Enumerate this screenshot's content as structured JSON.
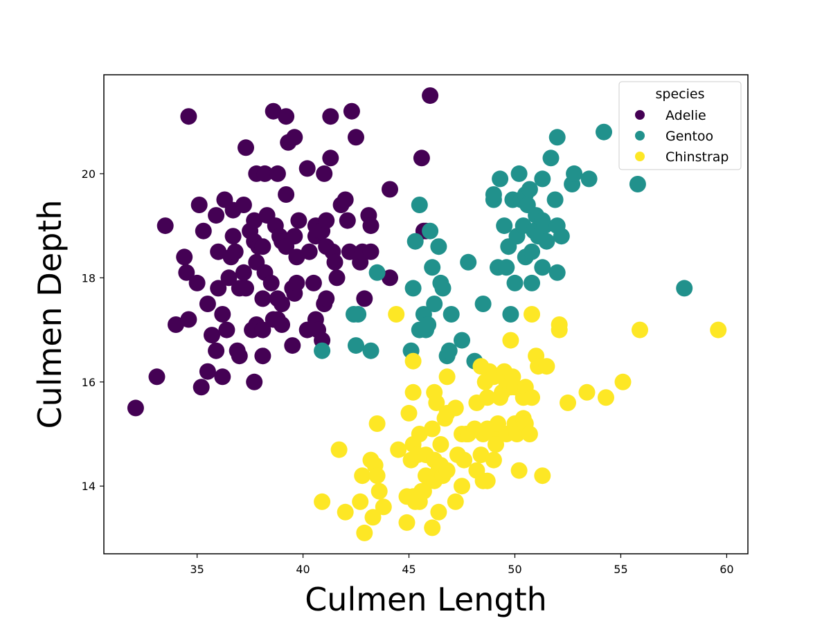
{
  "chart_data": {
    "type": "scatter",
    "title": "",
    "xlabel": "Culmen Length",
    "ylabel": "Culmen Depth",
    "xlim": [
      30.6,
      61.0
    ],
    "ylim": [
      12.7,
      21.9
    ],
    "xticks": [
      35,
      40,
      45,
      50,
      55,
      60
    ],
    "yticks": [
      14,
      16,
      18,
      20
    ],
    "grid": false,
    "legend": {
      "title": "species",
      "placement": "top-right"
    },
    "series": [
      {
        "name": "Adelie",
        "color": "#440154",
        "points": [
          [
            32.1,
            15.5
          ],
          [
            33.1,
            16.1
          ],
          [
            33.5,
            19.0
          ],
          [
            34.0,
            17.1
          ],
          [
            34.4,
            18.4
          ],
          [
            34.5,
            18.1
          ],
          [
            34.6,
            21.1
          ],
          [
            34.6,
            17.2
          ],
          [
            35.0,
            17.9
          ],
          [
            35.1,
            19.4
          ],
          [
            35.3,
            18.9
          ],
          [
            35.2,
            15.9
          ],
          [
            35.5,
            16.2
          ],
          [
            35.5,
            17.5
          ],
          [
            35.7,
            16.9
          ],
          [
            35.9,
            16.6
          ],
          [
            35.9,
            19.2
          ],
          [
            36.0,
            17.8
          ],
          [
            36.0,
            18.5
          ],
          [
            36.2,
            17.3
          ],
          [
            36.2,
            16.1
          ],
          [
            36.3,
            19.5
          ],
          [
            36.4,
            17.0
          ],
          [
            36.5,
            18.0
          ],
          [
            36.6,
            18.4
          ],
          [
            36.7,
            18.8
          ],
          [
            36.7,
            19.3
          ],
          [
            36.8,
            18.5
          ],
          [
            36.9,
            16.6
          ],
          [
            37.0,
            16.5
          ],
          [
            37.0,
            17.8
          ],
          [
            37.2,
            18.1
          ],
          [
            37.2,
            19.4
          ],
          [
            37.3,
            17.8
          ],
          [
            37.3,
            20.5
          ],
          [
            37.5,
            18.9
          ],
          [
            37.6,
            17.0
          ],
          [
            37.7,
            18.7
          ],
          [
            37.7,
            19.1
          ],
          [
            37.7,
            16.0
          ],
          [
            37.8,
            18.3
          ],
          [
            37.8,
            20.0
          ],
          [
            37.8,
            17.1
          ],
          [
            37.9,
            18.6
          ],
          [
            38.1,
            17.0
          ],
          [
            38.1,
            18.6
          ],
          [
            38.1,
            16.5
          ],
          [
            38.1,
            17.6
          ],
          [
            38.2,
            18.1
          ],
          [
            38.2,
            20.0
          ],
          [
            38.3,
            19.2
          ],
          [
            38.5,
            17.9
          ],
          [
            38.6,
            21.2
          ],
          [
            38.6,
            17.2
          ],
          [
            38.7,
            19.0
          ],
          [
            38.8,
            17.2
          ],
          [
            38.8,
            17.6
          ],
          [
            38.8,
            20.0
          ],
          [
            38.9,
            18.8
          ],
          [
            39.0,
            17.1
          ],
          [
            39.0,
            17.5
          ],
          [
            39.0,
            18.7
          ],
          [
            39.1,
            18.7
          ],
          [
            39.2,
            19.6
          ],
          [
            39.2,
            21.1
          ],
          [
            39.2,
            18.6
          ],
          [
            39.3,
            20.6
          ],
          [
            39.5,
            16.7
          ],
          [
            39.5,
            17.8
          ],
          [
            39.6,
            17.7
          ],
          [
            39.6,
            20.7
          ],
          [
            39.6,
            18.8
          ],
          [
            39.7,
            17.9
          ],
          [
            39.7,
            18.4
          ],
          [
            39.8,
            19.1
          ],
          [
            40.2,
            17.0
          ],
          [
            40.2,
            20.1
          ],
          [
            40.3,
            18.5
          ],
          [
            40.5,
            17.9
          ],
          [
            40.6,
            18.8
          ],
          [
            40.6,
            19.0
          ],
          [
            40.6,
            17.2
          ],
          [
            40.7,
            17.0
          ],
          [
            40.8,
            18.9
          ],
          [
            40.9,
            16.8
          ],
          [
            40.9,
            18.9
          ],
          [
            41.0,
            20.0
          ],
          [
            41.0,
            17.5
          ],
          [
            41.1,
            17.6
          ],
          [
            41.1,
            18.6
          ],
          [
            41.1,
            19.1
          ],
          [
            41.3,
            20.3
          ],
          [
            41.3,
            21.1
          ],
          [
            41.4,
            18.5
          ],
          [
            41.5,
            18.3
          ],
          [
            41.6,
            18.0
          ],
          [
            41.8,
            19.4
          ],
          [
            42.0,
            19.5
          ],
          [
            42.1,
            19.1
          ],
          [
            42.2,
            18.5
          ],
          [
            42.3,
            21.2
          ],
          [
            42.5,
            20.7
          ],
          [
            42.7,
            18.3
          ],
          [
            42.8,
            18.5
          ],
          [
            42.9,
            17.6
          ],
          [
            43.1,
            19.2
          ],
          [
            43.2,
            19.0
          ],
          [
            43.2,
            18.5
          ],
          [
            44.1,
            19.7
          ],
          [
            44.1,
            18.0
          ],
          [
            45.6,
            20.3
          ],
          [
            46.0,
            21.5
          ],
          [
            45.8,
            18.9
          ],
          [
            45.7,
            18.9
          ]
        ]
      },
      {
        "name": "Gentoo",
        "color": "#21918c",
        "points": [
          [
            40.9,
            16.6
          ],
          [
            42.4,
            17.3
          ],
          [
            42.5,
            16.7
          ],
          [
            42.6,
            17.3
          ],
          [
            43.2,
            16.6
          ],
          [
            43.5,
            18.1
          ],
          [
            45.1,
            16.6
          ],
          [
            45.2,
            17.8
          ],
          [
            45.3,
            18.7
          ],
          [
            45.5,
            17.0
          ],
          [
            45.5,
            19.4
          ],
          [
            45.7,
            17.3
          ],
          [
            45.8,
            17.0
          ],
          [
            45.9,
            17.1
          ],
          [
            46.0,
            18.9
          ],
          [
            46.1,
            18.2
          ],
          [
            46.2,
            17.5
          ],
          [
            46.4,
            18.6
          ],
          [
            46.5,
            17.9
          ],
          [
            46.6,
            17.8
          ],
          [
            46.8,
            16.5
          ],
          [
            46.9,
            16.6
          ],
          [
            47.0,
            17.3
          ],
          [
            47.5,
            16.8
          ],
          [
            47.8,
            18.3
          ],
          [
            48.1,
            16.4
          ],
          [
            48.5,
            17.5
          ],
          [
            49.0,
            19.5
          ],
          [
            49.0,
            19.6
          ],
          [
            49.2,
            18.2
          ],
          [
            49.3,
            19.9
          ],
          [
            49.5,
            19.0
          ],
          [
            49.6,
            18.2
          ],
          [
            49.7,
            18.6
          ],
          [
            49.8,
            17.3
          ],
          [
            49.9,
            19.5
          ],
          [
            50.0,
            17.9
          ],
          [
            50.1,
            18.8
          ],
          [
            50.2,
            20.0
          ],
          [
            50.3,
            19.5
          ],
          [
            50.4,
            19.0
          ],
          [
            50.5,
            18.4
          ],
          [
            50.5,
            19.6
          ],
          [
            50.6,
            19.4
          ],
          [
            50.7,
            19.7
          ],
          [
            50.8,
            17.9
          ],
          [
            50.8,
            18.5
          ],
          [
            50.9,
            18.9
          ],
          [
            51.0,
            19.2
          ],
          [
            51.1,
            18.8
          ],
          [
            51.3,
            18.2
          ],
          [
            51.3,
            19.9
          ],
          [
            51.3,
            19.1
          ],
          [
            51.4,
            19.0
          ],
          [
            51.5,
            18.7
          ],
          [
            51.7,
            20.3
          ],
          [
            51.9,
            19.5
          ],
          [
            52.0,
            18.1
          ],
          [
            52.0,
            19.0
          ],
          [
            52.0,
            20.7
          ],
          [
            52.2,
            18.8
          ],
          [
            52.7,
            19.8
          ],
          [
            52.8,
            20.0
          ],
          [
            53.5,
            19.9
          ],
          [
            54.2,
            20.8
          ],
          [
            55.8,
            19.8
          ],
          [
            58.0,
            17.8
          ]
        ]
      },
      {
        "name": "Chinstrap",
        "color": "#fde725",
        "points": [
          [
            40.9,
            13.7
          ],
          [
            41.7,
            14.7
          ],
          [
            42.0,
            13.5
          ],
          [
            42.7,
            13.7
          ],
          [
            42.8,
            14.2
          ],
          [
            42.9,
            13.1
          ],
          [
            43.2,
            14.5
          ],
          [
            43.3,
            13.4
          ],
          [
            43.4,
            14.4
          ],
          [
            43.5,
            14.2
          ],
          [
            43.5,
            15.2
          ],
          [
            43.6,
            13.9
          ],
          [
            43.8,
            13.6
          ],
          [
            44.4,
            17.3
          ],
          [
            44.5,
            14.7
          ],
          [
            44.9,
            13.8
          ],
          [
            44.9,
            13.3
          ],
          [
            45.0,
            15.4
          ],
          [
            45.1,
            14.5
          ],
          [
            45.2,
            13.8
          ],
          [
            45.2,
            14.8
          ],
          [
            45.2,
            16.4
          ],
          [
            45.2,
            15.8
          ],
          [
            45.3,
            13.7
          ],
          [
            45.4,
            14.6
          ],
          [
            45.5,
            13.7
          ],
          [
            45.5,
            15.0
          ],
          [
            45.6,
            13.9
          ],
          [
            45.7,
            13.9
          ],
          [
            45.8,
            14.2
          ],
          [
            45.8,
            14.6
          ],
          [
            46.1,
            13.2
          ],
          [
            46.1,
            15.1
          ],
          [
            46.2,
            14.1
          ],
          [
            46.2,
            14.5
          ],
          [
            46.2,
            15.8
          ],
          [
            46.3,
            15.6
          ],
          [
            46.4,
            13.5
          ],
          [
            46.4,
            14.3
          ],
          [
            46.5,
            14.4
          ],
          [
            46.5,
            14.8
          ],
          [
            46.6,
            14.2
          ],
          [
            46.7,
            15.3
          ],
          [
            46.8,
            14.3
          ],
          [
            46.8,
            15.4
          ],
          [
            46.8,
            16.1
          ],
          [
            47.2,
            13.7
          ],
          [
            47.2,
            15.5
          ],
          [
            47.3,
            14.6
          ],
          [
            47.5,
            14.0
          ],
          [
            47.5,
            15.0
          ],
          [
            47.6,
            14.5
          ],
          [
            47.7,
            15.0
          ],
          [
            47.8,
            15.0
          ],
          [
            48.1,
            15.1
          ],
          [
            48.2,
            14.3
          ],
          [
            48.2,
            15.6
          ],
          [
            48.4,
            14.6
          ],
          [
            48.4,
            16.3
          ],
          [
            48.5,
            14.1
          ],
          [
            48.5,
            15.0
          ],
          [
            48.6,
            16.0
          ],
          [
            48.7,
            14.1
          ],
          [
            48.7,
            15.1
          ],
          [
            48.7,
            15.7
          ],
          [
            48.8,
            16.2
          ],
          [
            49.0,
            14.5
          ],
          [
            49.0,
            16.1
          ],
          [
            49.1,
            15.0
          ],
          [
            49.1,
            14.8
          ],
          [
            49.2,
            15.2
          ],
          [
            49.3,
            15.7
          ],
          [
            49.4,
            15.8
          ],
          [
            49.5,
            16.2
          ],
          [
            49.6,
            15.0
          ],
          [
            49.6,
            16.0
          ],
          [
            49.8,
            16.8
          ],
          [
            49.8,
            15.9
          ],
          [
            49.9,
            16.1
          ],
          [
            50.0,
            15.2
          ],
          [
            50.0,
            15.9
          ],
          [
            50.1,
            15.0
          ],
          [
            50.2,
            14.3
          ],
          [
            50.4,
            15.3
          ],
          [
            50.4,
            15.7
          ],
          [
            50.5,
            15.9
          ],
          [
            50.5,
            15.2
          ],
          [
            50.7,
            15.0
          ],
          [
            50.8,
            17.3
          ],
          [
            50.8,
            15.7
          ],
          [
            51.0,
            16.5
          ],
          [
            51.1,
            16.3
          ],
          [
            51.3,
            14.2
          ],
          [
            51.5,
            16.3
          ],
          [
            52.1,
            17.0
          ],
          [
            52.1,
            17.1
          ],
          [
            52.5,
            15.6
          ],
          [
            53.4,
            15.8
          ],
          [
            54.3,
            15.7
          ],
          [
            55.1,
            16.0
          ],
          [
            55.9,
            17.0
          ],
          [
            59.6,
            17.0
          ]
        ]
      }
    ]
  }
}
